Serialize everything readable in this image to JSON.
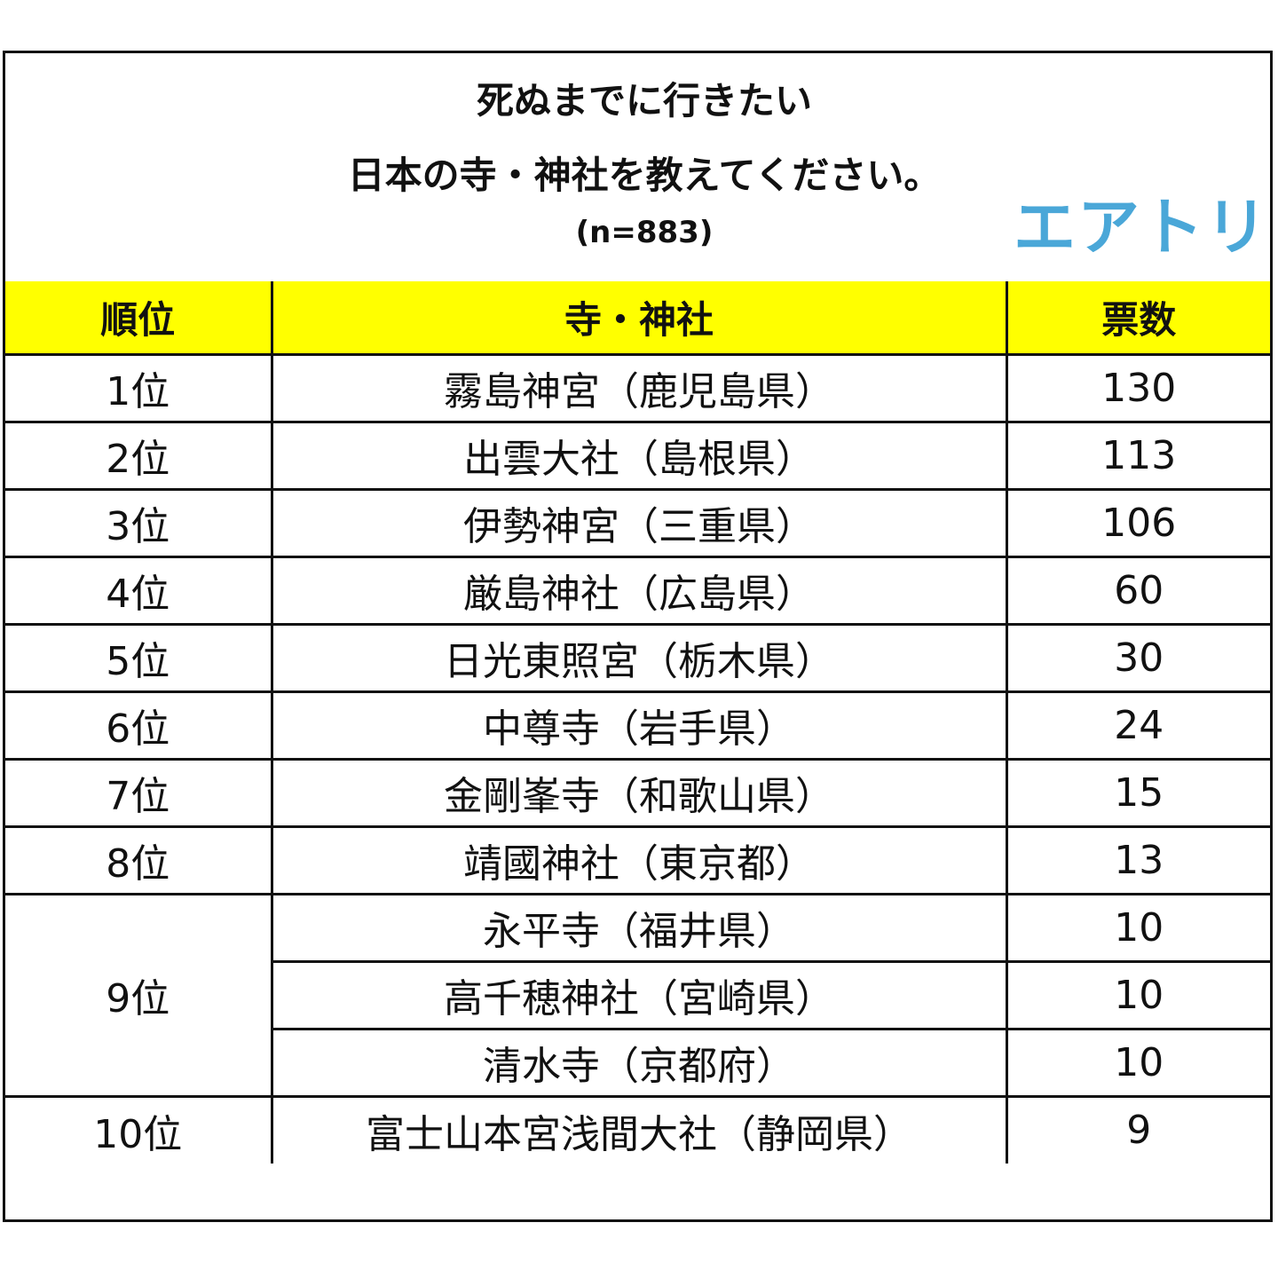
{
  "title": {
    "line1": "死ぬまでに行きたい",
    "line2": "日本の寺・神社を教えてください。",
    "line3": "(n=883)"
  },
  "logo": "エアトリ",
  "colors": {
    "header_bg": "#ffff00",
    "logo": "#4aa7d8",
    "border": "#111111"
  },
  "table": {
    "headers": [
      "順位",
      "寺・神社",
      "票数"
    ],
    "rows": [
      {
        "rank": "1位",
        "name": "霧島神宮（鹿児島県）",
        "votes": "130"
      },
      {
        "rank": "2位",
        "name": "出雲大社（島根県）",
        "votes": "113"
      },
      {
        "rank": "3位",
        "name": "伊勢神宮（三重県）",
        "votes": "106"
      },
      {
        "rank": "4位",
        "name": "厳島神社（広島県）",
        "votes": "60"
      },
      {
        "rank": "5位",
        "name": "日光東照宮（栃木県）",
        "votes": "30"
      },
      {
        "rank": "6位",
        "name": "中尊寺（岩手県）",
        "votes": "24"
      },
      {
        "rank": "7位",
        "name": "金剛峯寺（和歌山県）",
        "votes": "15"
      },
      {
        "rank": "8位",
        "name": "靖國神社（東京都）",
        "votes": "13"
      },
      {
        "rank": "9位",
        "name": "永平寺（福井県）",
        "votes": "10"
      },
      {
        "rank": "",
        "name": "高千穂神社（宮崎県）",
        "votes": "10"
      },
      {
        "rank": "",
        "name": "清水寺（京都府）",
        "votes": "10"
      },
      {
        "rank": "10位",
        "name": "富士山本宮浅間大社（静岡県）",
        "votes": "9"
      }
    ]
  }
}
